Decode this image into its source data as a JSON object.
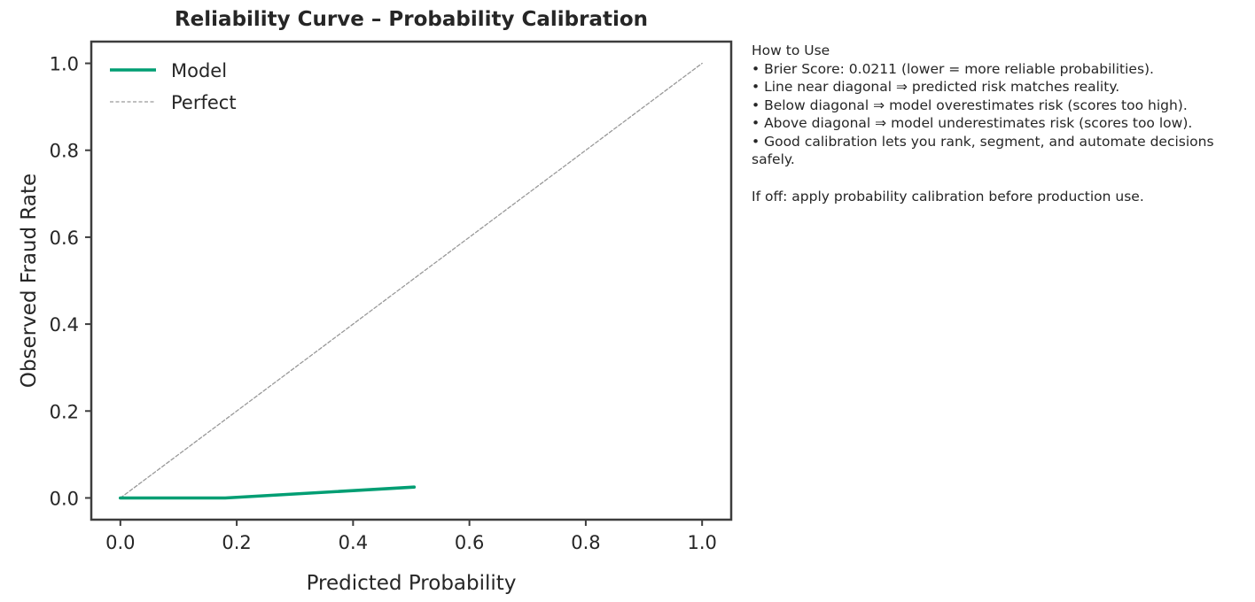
{
  "chart_data": {
    "type": "line",
    "title": "Reliability Curve – Probability Calibration",
    "xlabel": "Predicted Probability",
    "ylabel": "Observed Fraud Rate",
    "xlim": [
      -0.05,
      1.05
    ],
    "ylim": [
      -0.05,
      1.05
    ],
    "xticks": [
      "0.0",
      "0.2",
      "0.4",
      "0.6",
      "0.8",
      "1.0"
    ],
    "yticks": [
      "0.0",
      "0.2",
      "0.4",
      "0.6",
      "0.8",
      "1.0"
    ],
    "grid": false,
    "legend_position": "top-left",
    "series": [
      {
        "name": "Model",
        "color": "#009e73",
        "style": "solid",
        "x": [
          0.0,
          0.005,
          0.18,
          0.505
        ],
        "y": [
          0.0,
          0.0,
          0.0,
          0.025
        ]
      },
      {
        "name": "Perfect",
        "color": "#999999",
        "style": "dashed",
        "x": [
          0.0,
          1.0
        ],
        "y": [
          0.0,
          1.0
        ]
      }
    ]
  },
  "notes": {
    "heading": "How to Use",
    "bullets": [
      "• Brier Score: 0.0211 (lower = more reliable probabilities).",
      "• Line near diagonal ⇒ predicted risk matches reality.",
      "• Below diagonal ⇒ model overestimates risk (scores too high).",
      "• Above diagonal ⇒ model underestimates risk (scores too low).",
      "• Good calibration lets you rank, segment, and automate decisions safely."
    ],
    "footer": "If off: apply probability calibration before production use."
  }
}
